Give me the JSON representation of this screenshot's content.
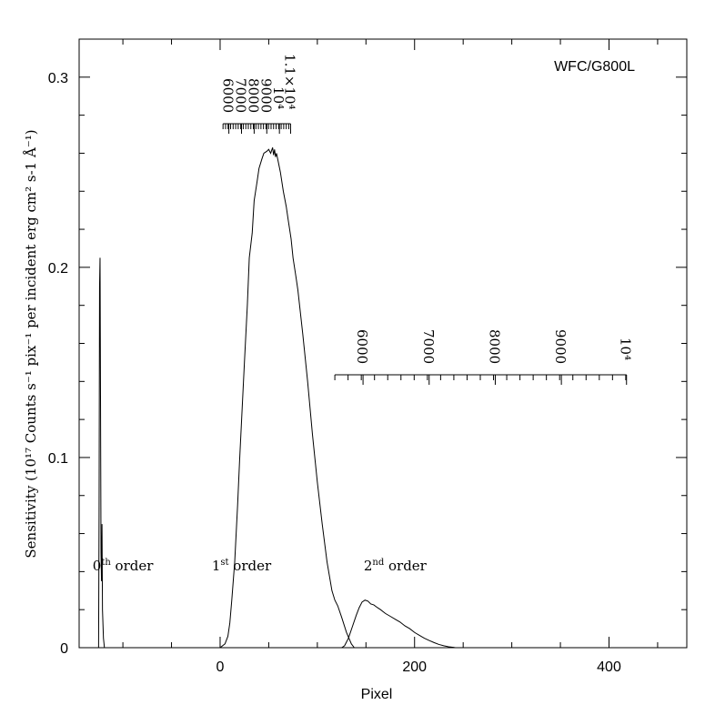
{
  "chart_data": {
    "type": "line",
    "title": "WFC/G800L",
    "xlabel": "Pixel",
    "ylabel": "Sensitivity (10¹⁷ Counts s⁻¹ pix⁻¹ per incident erg cm² s-1 Å⁻¹)",
    "xlim": [
      -145,
      480
    ],
    "ylim": [
      0,
      0.32
    ],
    "x_ticks": [
      "0",
      "200",
      "400"
    ],
    "y_ticks": [
      "0",
      "0.1",
      "0.2",
      "0.3"
    ],
    "annotations": [
      {
        "base": "0",
        "sup": "th",
        "rest": " order",
        "x": -100,
        "y": 0.043
      },
      {
        "base": "1",
        "sup": "st",
        "rest": " order",
        "x": 22,
        "y": 0.043
      },
      {
        "base": "2",
        "sup": "nd",
        "rest": " order",
        "x": 180,
        "y": 0.043
      }
    ],
    "series": [
      {
        "label": "0th order",
        "x": [
          -126,
          -125,
          -124.5,
          -124,
          -123.5,
          -123,
          -122.5,
          -122,
          -121.5,
          -121,
          -120,
          -119
        ],
        "y": [
          0,
          0,
          0.07,
          0.19,
          0.205,
          0.13,
          0.05,
          0.035,
          0.065,
          0.02,
          0.005,
          0
        ]
      },
      {
        "label": "1st order",
        "x": [
          0,
          5,
          8,
          10,
          12,
          15,
          18,
          20,
          25,
          28,
          30,
          33,
          35,
          38,
          40,
          43,
          45,
          48,
          50,
          52,
          54,
          55,
          56,
          57,
          58,
          60,
          62,
          65,
          68,
          70,
          73,
          75,
          78,
          80,
          85,
          90,
          95,
          100,
          105,
          110,
          115,
          118,
          121,
          125,
          130,
          135,
          138
        ],
        "y": [
          0,
          0.002,
          0.006,
          0.013,
          0.025,
          0.045,
          0.075,
          0.098,
          0.15,
          0.18,
          0.205,
          0.218,
          0.235,
          0.245,
          0.252,
          0.257,
          0.26,
          0.261,
          0.262,
          0.26,
          0.263,
          0.259,
          0.262,
          0.258,
          0.26,
          0.255,
          0.25,
          0.24,
          0.232,
          0.225,
          0.215,
          0.205,
          0.195,
          0.188,
          0.165,
          0.14,
          0.112,
          0.087,
          0.065,
          0.045,
          0.03,
          0.025,
          0.022,
          0.016,
          0.008,
          0.002,
          0
        ]
      },
      {
        "label": "2nd order",
        "x": [
          125,
          128,
          132,
          136,
          140,
          143,
          146,
          149,
          152,
          155,
          158,
          162,
          165,
          170,
          175,
          180,
          185,
          190,
          195,
          200,
          205,
          210,
          215,
          220,
          225,
          230,
          235,
          240,
          242
        ],
        "y": [
          0,
          0.001,
          0.005,
          0.011,
          0.017,
          0.021,
          0.024,
          0.025,
          0.0245,
          0.023,
          0.0225,
          0.021,
          0.02,
          0.018,
          0.0165,
          0.015,
          0.0135,
          0.0115,
          0.01,
          0.008,
          0.0065,
          0.005,
          0.0038,
          0.0027,
          0.0017,
          0.001,
          0.0005,
          0.0002,
          0
        ]
      }
    ],
    "wavelength_scales": [
      {
        "name": "1st order wavelength",
        "y": 0.2755,
        "x_start": 3,
        "x_end": 72.5,
        "labels": [
          {
            "text": "6000",
            "x": 9
          },
          {
            "text": "7000",
            "x": 22
          },
          {
            "text": "8000",
            "x": 35
          },
          {
            "text": "9000",
            "x": 48
          },
          {
            "text": "10⁴",
            "x": 61
          },
          {
            "text": "1.1×10⁴",
            "x": 72.5
          }
        ],
        "minor_step": 2.6
      },
      {
        "name": "2nd order wavelength",
        "y": 0.1435,
        "x_start": 118,
        "x_end": 418,
        "labels": [
          {
            "text": "6000",
            "x": 147
          },
          {
            "text": "7000",
            "x": 215
          },
          {
            "text": "8000",
            "x": 283
          },
          {
            "text": "9000",
            "x": 351
          },
          {
            "text": "10⁴",
            "x": 418
          }
        ],
        "minor_step": 13.6
      }
    ]
  }
}
